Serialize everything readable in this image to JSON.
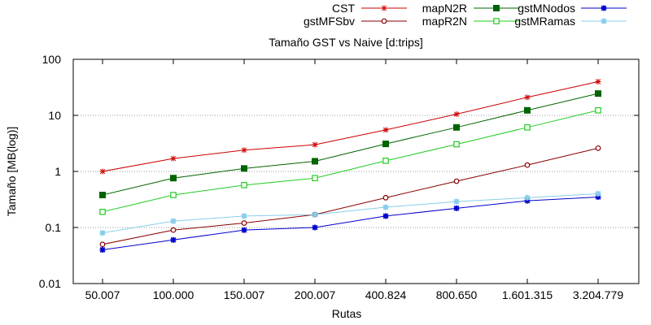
{
  "chart_data": {
    "type": "line",
    "title": "Tamaño GST vs Naive [d:trips]",
    "xlabel": "Rutas",
    "ylabel": "Tamaño [MB(log)]",
    "y_scale": "log",
    "ylim": [
      0.01,
      100
    ],
    "y_ticks": [
      "0.01",
      "0.1",
      "1",
      "10",
      "100"
    ],
    "grid": "horizontal dotted",
    "legend_position": "top, outside plot",
    "categories": [
      "50.007",
      "100.000",
      "150.007",
      "200.007",
      "400.824",
      "800.650",
      "1.601.315",
      "3.204.779"
    ],
    "series": [
      {
        "name": "CST",
        "color": "#cc0000",
        "marker": "star",
        "values": [
          1.0,
          1.7,
          2.4,
          3.0,
          5.5,
          10.5,
          21,
          40
        ]
      },
      {
        "name": "gstMFSbv",
        "color": "#8b0000",
        "marker": "open-circle",
        "values": [
          0.05,
          0.09,
          0.12,
          0.17,
          0.34,
          0.67,
          1.3,
          2.6
        ]
      },
      {
        "name": "mapN2R",
        "color": "#006400",
        "marker": "filled-square",
        "values": [
          0.38,
          0.76,
          1.13,
          1.52,
          3.1,
          6.1,
          12.3,
          24.5
        ]
      },
      {
        "name": "mapR2N",
        "color": "#22cc22",
        "marker": "open-square",
        "values": [
          0.19,
          0.38,
          0.57,
          0.76,
          1.55,
          3.05,
          6.1,
          12.3
        ]
      },
      {
        "name": "gstMNodos",
        "color": "#0000cc",
        "marker": "filled-star",
        "values": [
          0.04,
          0.06,
          0.09,
          0.1,
          0.16,
          0.22,
          0.3,
          0.35
        ]
      },
      {
        "name": "gstMRamas",
        "color": "#87ceeb",
        "marker": "filled-star",
        "values": [
          0.08,
          0.13,
          0.16,
          0.17,
          0.23,
          0.29,
          0.34,
          0.4
        ]
      }
    ]
  }
}
